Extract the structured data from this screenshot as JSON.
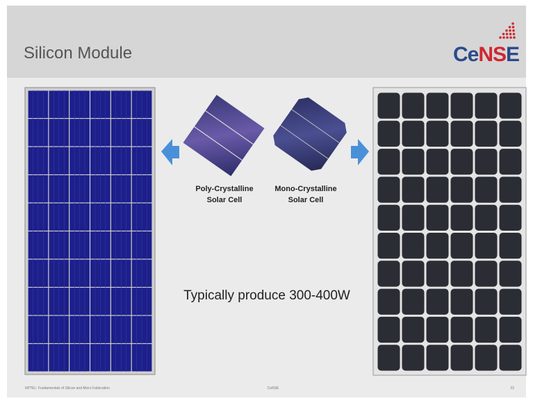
{
  "header": {
    "title": "Silicon Module",
    "logo": {
      "parts": [
        "Ce",
        "NS",
        "E"
      ]
    }
  },
  "cells": [
    {
      "label": [
        "Poly-Crystalline",
        "Solar Cell"
      ]
    },
    {
      "label": [
        "Mono-Crystalline",
        "Solar Cell"
      ]
    }
  ],
  "body": {
    "text": "Typically produce 300-400W"
  },
  "footer": {
    "left": "NPTEL: Fundamentals of Silicon and Micro Fabrication",
    "center": "CeNSE",
    "right": "22"
  }
}
